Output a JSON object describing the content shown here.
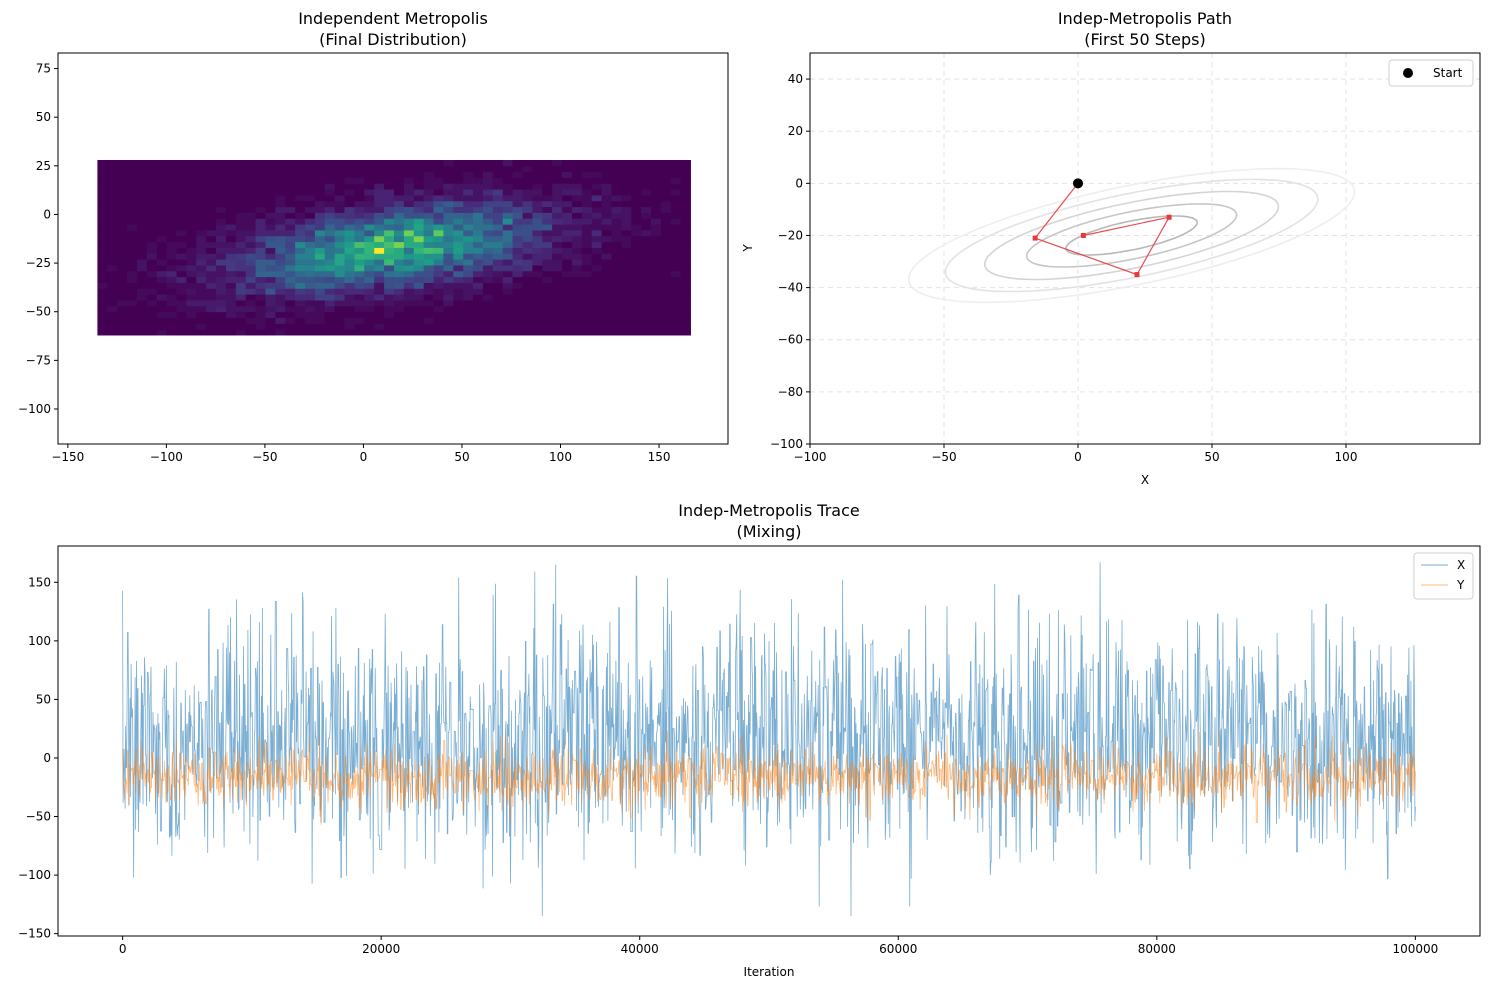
{
  "chart_data": [
    {
      "id": "hist",
      "type": "heatmap",
      "title_line1": "Independent Metropolis",
      "title_line2": "(Final Distribution)",
      "xlabel": "",
      "ylabel": "",
      "xlim": [
        -155,
        185
      ],
      "ylim": [
        -118,
        83
      ],
      "xticks": [
        -150,
        -100,
        -50,
        0,
        50,
        100,
        150
      ],
      "yticks": [
        75,
        50,
        25,
        0,
        -25,
        -50,
        -75,
        -100
      ],
      "histogram_extent": {
        "x": [
          -135,
          166
        ],
        "y": [
          -62,
          28
        ]
      },
      "bins": [
        60,
        30
      ],
      "sample_mean": [
        15,
        -17
      ],
      "sample_std": [
        45,
        13
      ],
      "sample_correlation": 0.45,
      "colormap": "viridis"
    },
    {
      "id": "path",
      "type": "line",
      "title_line1": "Indep-Metropolis Path",
      "title_line2": "(First 50 Steps)",
      "xlabel": "X",
      "ylabel": "Y",
      "xlim": [
        -100,
        150
      ],
      "ylim": [
        -100,
        50
      ],
      "xticks": [
        -100,
        -50,
        0,
        50,
        100
      ],
      "yticks": [
        40,
        20,
        0,
        -20,
        -40,
        -60,
        -80,
        -100
      ],
      "grid": true,
      "start": {
        "x": 0,
        "y": 0,
        "label": "Start"
      },
      "path": [
        {
          "x": 0,
          "y": 0
        },
        {
          "x": -16,
          "y": -21
        },
        {
          "x": 22,
          "y": -35
        },
        {
          "x": 34,
          "y": -13
        },
        {
          "x": 2,
          "y": -20
        }
      ],
      "contours": {
        "center": [
          20,
          -20
        ],
        "angle_deg": 12,
        "levels": [
          {
            "rx": 25,
            "ry": 5.5,
            "color": "#b8b8b8"
          },
          {
            "rx": 40,
            "ry": 9,
            "color": "#c6c6c6"
          },
          {
            "rx": 56,
            "ry": 12.5,
            "color": "#d4d4d4"
          },
          {
            "rx": 71,
            "ry": 16,
            "color": "#e2e2e2"
          },
          {
            "rx": 85,
            "ry": 19,
            "color": "#eeeeee"
          }
        ]
      },
      "legend_position": "top-right",
      "colors": {
        "path": "#e8383c",
        "start": "#000000"
      }
    },
    {
      "id": "trace",
      "type": "line",
      "title_line1": "Indep-Metropolis Trace",
      "title_line2": "(Mixing)",
      "xlabel": "Iteration",
      "ylabel": "",
      "xlim": [
        -5000,
        105000
      ],
      "ylim": [
        -152,
        181
      ],
      "xticks": [
        0,
        20000,
        40000,
        60000,
        80000,
        100000
      ],
      "yticks": [
        150,
        100,
        50,
        0,
        -50,
        -100,
        -150
      ],
      "iterations": 100000,
      "series": [
        {
          "name": "X",
          "color": "#1f77b4",
          "mean": 15,
          "std": 48,
          "min": -135,
          "max": 167
        },
        {
          "name": "Y",
          "color": "#ff7f0e",
          "mean": -17,
          "std": 13,
          "min": -57,
          "max": 26
        }
      ],
      "legend_position": "top-right"
    }
  ]
}
